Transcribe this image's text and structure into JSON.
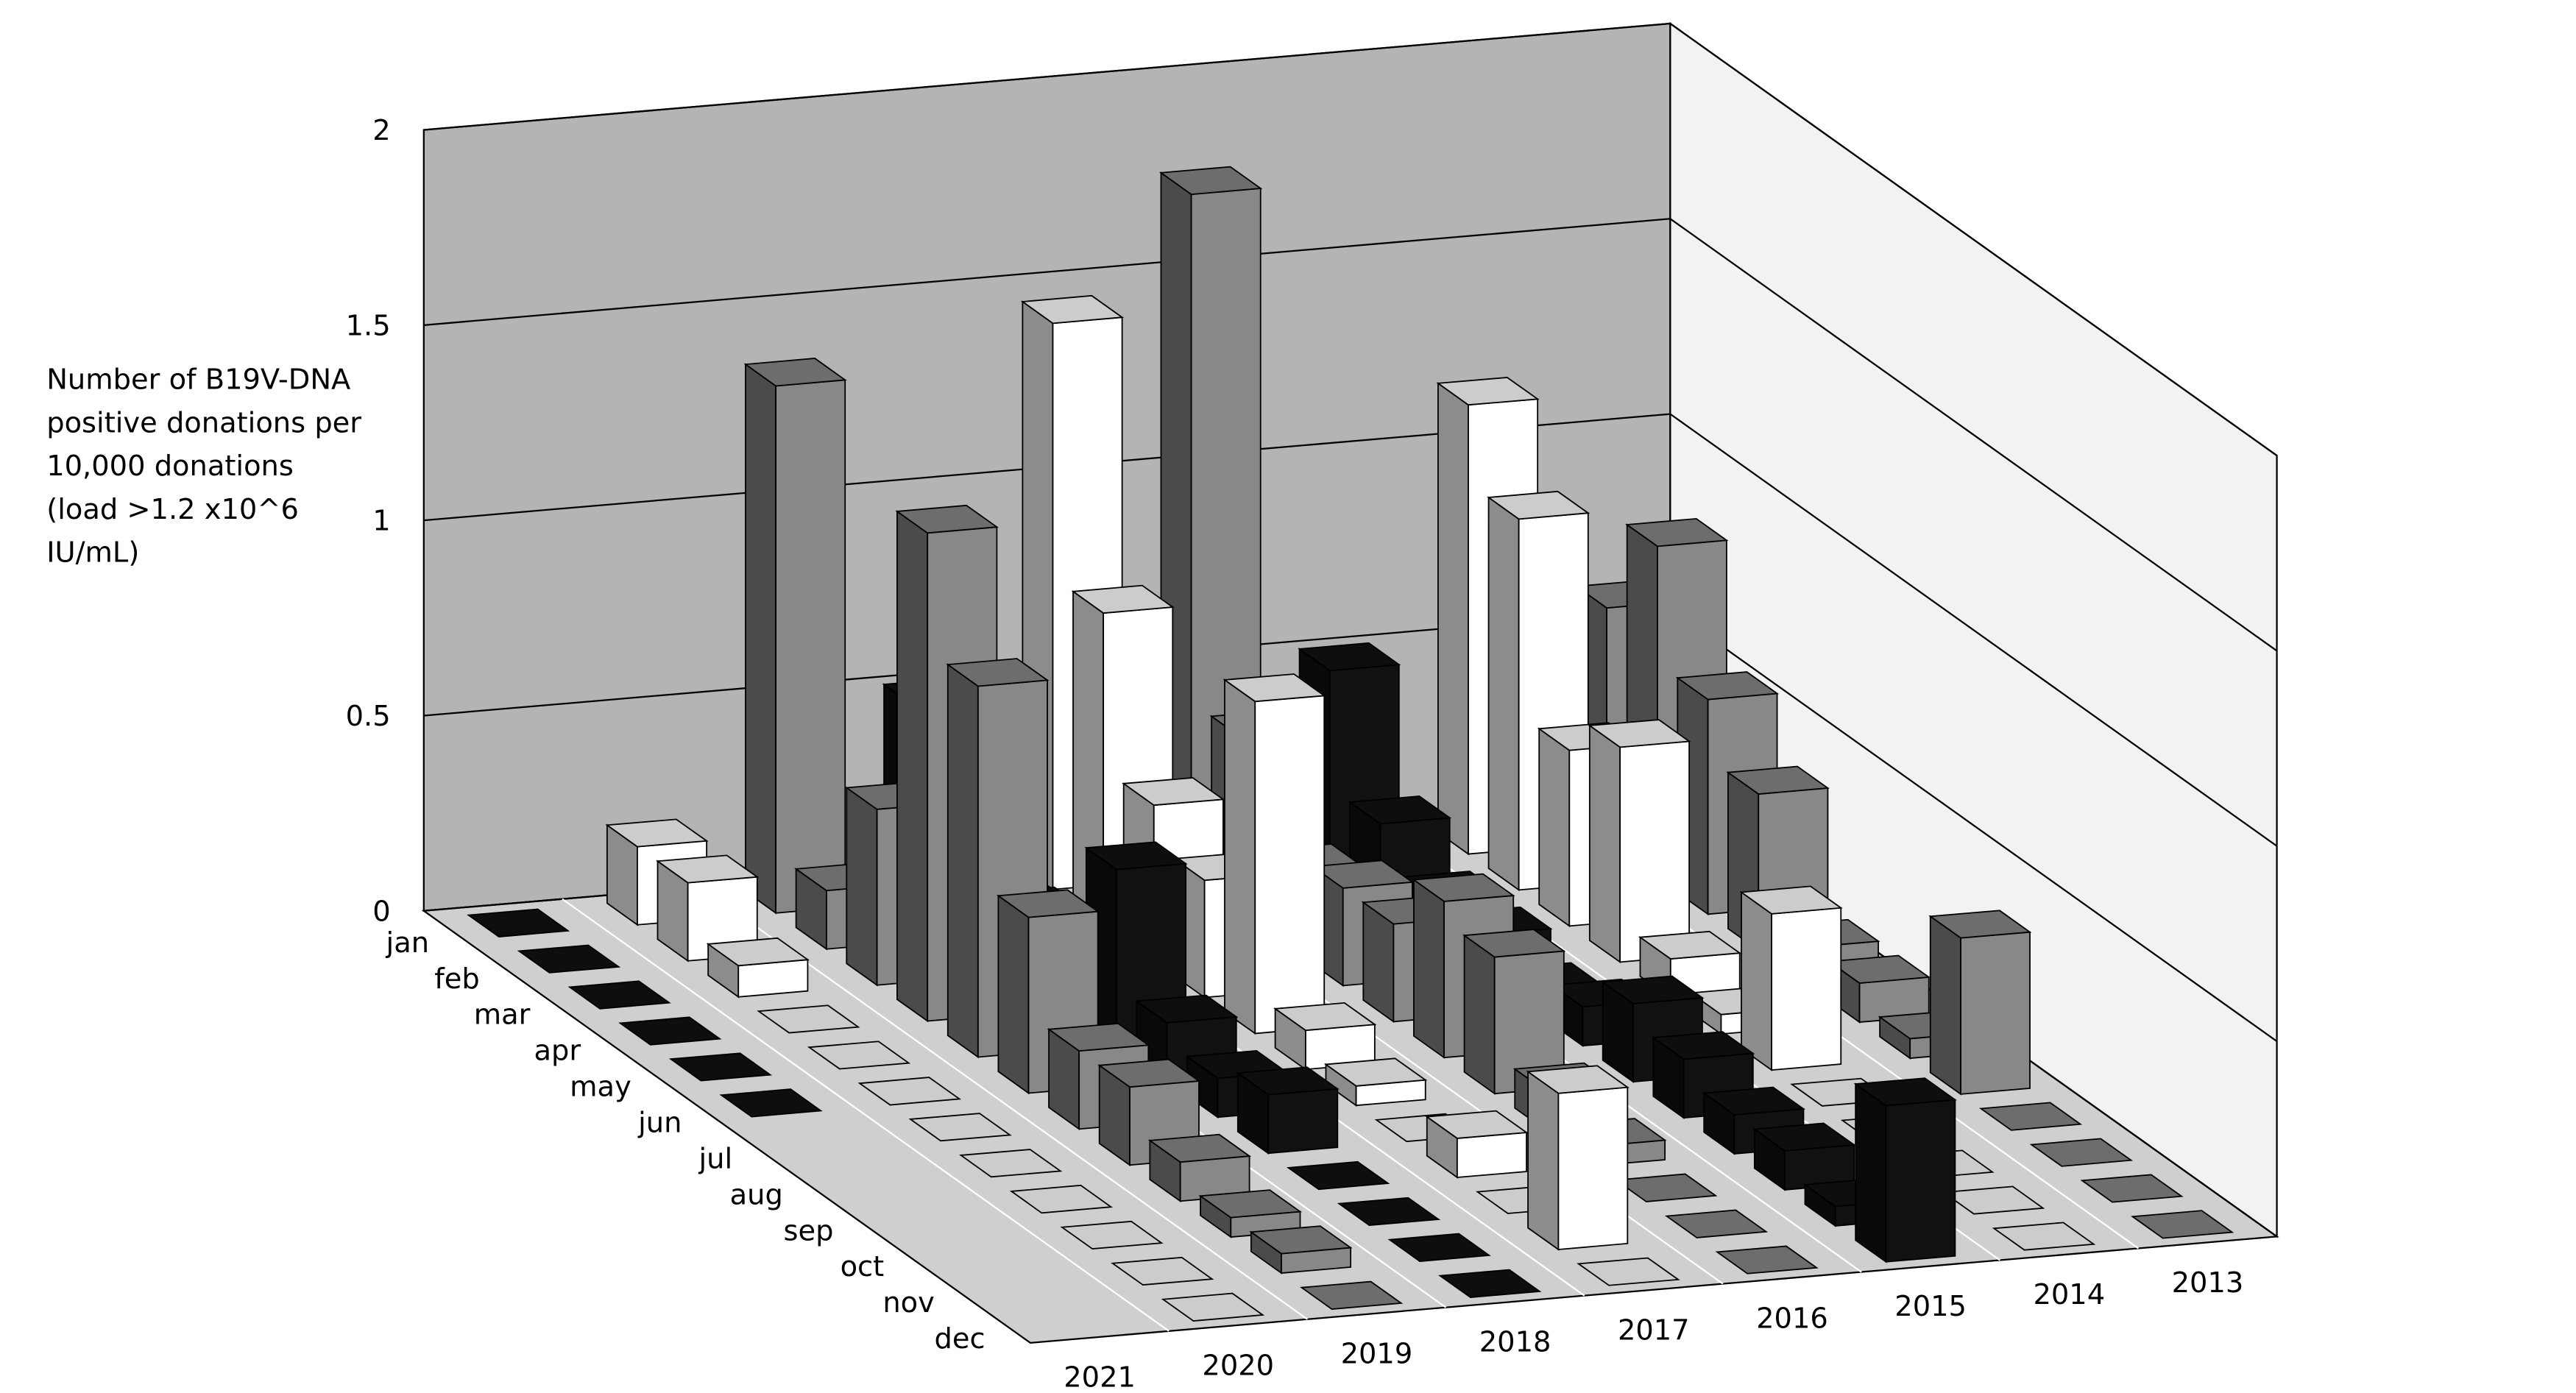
{
  "chart_data": {
    "type": "bar3d",
    "ylabel": [
      "Number of B19V-DNA",
      "positive donations per",
      "10,000 donations",
      "(load >1.2 x10^6",
      "IU/mL)"
    ],
    "categories": [
      "jan",
      "feb",
      "mar",
      "apr",
      "may",
      "jun",
      "jul",
      "aug",
      "sep",
      "oct",
      "nov",
      "dec"
    ],
    "series": [
      {
        "name": "2021",
        "color": "#111111",
        "values": [
          0,
          0,
          0,
          0,
          0,
          0,
          null,
          null,
          null,
          null,
          null,
          null
        ]
      },
      {
        "name": "2020",
        "color": "#ffffff",
        "values": [
          0.2,
          0.2,
          0.08,
          0,
          0,
          0,
          0,
          0,
          0,
          0,
          0,
          0
        ]
      },
      {
        "name": "2019",
        "color": "#888888",
        "values": [
          1.35,
          0.15,
          0.45,
          1.25,
          0.95,
          0.45,
          0.2,
          0.2,
          0.1,
          0.05,
          0.05,
          0
        ]
      },
      {
        "name": "2018",
        "color": "#111111",
        "values": [
          0.5,
          0.45,
          0.15,
          0.1,
          0.45,
          0.15,
          0.1,
          0.15,
          0,
          0,
          0,
          0
        ]
      },
      {
        "name": "2017",
        "color": "#ffffff",
        "values": [
          1.45,
          0.8,
          0.4,
          0.3,
          0.85,
          0.1,
          0.05,
          0,
          0.1,
          0,
          0.4,
          0
        ]
      },
      {
        "name": "2016",
        "color": "#888888",
        "values": [
          1.75,
          0.45,
          0.2,
          0.25,
          0.25,
          0.4,
          0.35,
          0.1,
          0.05,
          0,
          0,
          0
        ]
      },
      {
        "name": "2015",
        "color": "#111111",
        "values": [
          0.5,
          0.2,
          0.1,
          0.1,
          0.05,
          0.1,
          0.2,
          0.15,
          0.1,
          0.1,
          0.05,
          0.4
        ]
      },
      {
        "name": "2014",
        "color": "#ffffff",
        "values": [
          1.15,
          0.95,
          0.45,
          0.55,
          0.1,
          0.05,
          0.4,
          0,
          0,
          0,
          0,
          0
        ]
      },
      {
        "name": "2013",
        "color": "#888888",
        "values": [
          0.6,
          0.85,
          0.55,
          0.4,
          0.1,
          0.1,
          0.05,
          0.4,
          0,
          0,
          0,
          0
        ]
      }
    ],
    "ylim": [
      0,
      2
    ],
    "yticks": [
      0,
      0.5,
      1,
      1.5,
      2
    ],
    "grid": true
  }
}
